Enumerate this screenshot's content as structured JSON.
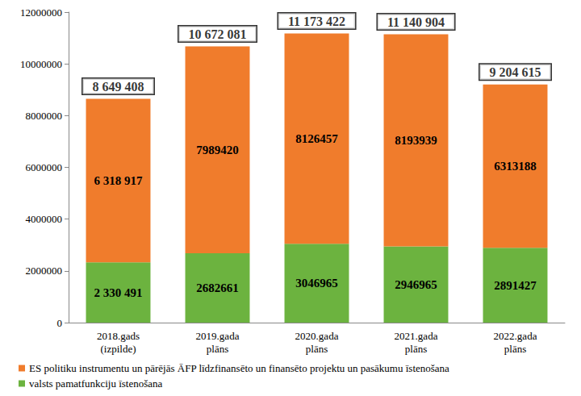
{
  "chart_data": {
    "type": "bar",
    "stacked": true,
    "data_labels": true,
    "grid": false,
    "legend": "bottom",
    "categories": [
      "2018.gads (izpilde)",
      "2019.gada plāns",
      "2020.gada plāns",
      "2021.gada plāns",
      "2022.gada plāns"
    ],
    "ylim": [
      0,
      12000000
    ],
    "yticks": [
      0,
      2000000,
      4000000,
      6000000,
      8000000,
      10000000,
      12000000
    ],
    "series": [
      {
        "name": "valsts pamatfunkciju īstenošana",
        "color": "#6cb33f",
        "values": [
          2330491,
          2682661,
          3046965,
          2946965,
          2891427
        ],
        "value_labels": [
          "2 330 491",
          "2682661",
          "3046965",
          "2946965",
          "2891427"
        ]
      },
      {
        "name": "ES politiku instrumentu un pārējās ĀFP līdzfinansēto un finansēto projektu un pasākumu īstenošana",
        "color": "#f07c2c",
        "values": [
          6318917,
          7989420,
          8126457,
          8193939,
          6313188
        ],
        "value_labels": [
          "6 318 917",
          "7989420",
          "8126457",
          "8193939",
          "6313188"
        ]
      }
    ],
    "totals": [
      8649408,
      10672081,
      11173422,
      11140904,
      9204615
    ],
    "total_labels": [
      "8 649 408",
      "10 672 081",
      "11 173 422",
      "11 140 904",
      "9 204 615"
    ]
  }
}
